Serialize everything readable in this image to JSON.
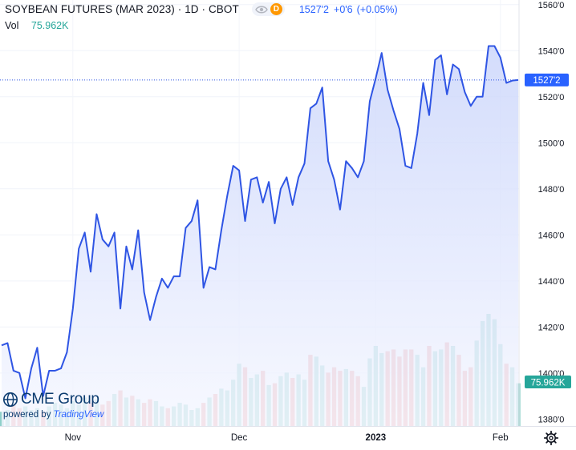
{
  "header": {
    "title": "SOYBEAN FUTURES (MAR 2023) · 1D · CBOT",
    "interval_badge": "D",
    "last_price": "1527'2",
    "change": "+0'6",
    "change_pct": "(+0.05%)",
    "vol_label": "Vol",
    "vol_value": "75.962K"
  },
  "price_tag": "1527'2",
  "volume_tag": "75.962K",
  "logo": {
    "name": "CME Group",
    "powered_label": "powered by",
    "powered_brand": "TradingView"
  },
  "icons": {
    "visibility": "eye-icon",
    "settings": "gear-icon"
  },
  "colors": {
    "line": "#2f55e4",
    "area_top": "#c9d4fb",
    "area_bottom": "#f5f7ff",
    "volume_up": "#8fd0c9",
    "volume_down": "#ef9a9a",
    "price_tag_bg": "#2962ff",
    "volume_tag_bg": "#26a69a",
    "interval_badge": "#ff9800"
  },
  "chart_data": {
    "type": "area",
    "x_ticks": [
      "Nov",
      "Dec",
      "2023",
      "Feb"
    ],
    "y_ticks": [
      "1380'0",
      "1400'0",
      "1420'0",
      "1440'0",
      "1460'0",
      "1480'0",
      "1500'0",
      "1520'0",
      "1540'0",
      "1560'0"
    ],
    "ylim": [
      1377,
      1562
    ],
    "grid": true,
    "last_price_value": 1527.25,
    "series": [
      {
        "values": [
          1412,
          1413,
          1401,
          1400,
          1389,
          1402,
          1411,
          1390,
          1401,
          1401,
          1402,
          1409,
          1428,
          1454,
          1461,
          1444,
          1469,
          1458,
          1455,
          1461,
          1428,
          1455,
          1445,
          1462,
          1435,
          1423,
          1433,
          1441,
          1437,
          1442,
          1442,
          1463,
          1466,
          1475,
          1437,
          1446,
          1445,
          1462,
          1477,
          1490,
          1488,
          1466,
          1484,
          1485,
          1474,
          1483,
          1465,
          1480,
          1485,
          1473,
          1485,
          1491,
          1515,
          1517,
          1524,
          1492,
          1484,
          1471,
          1492,
          1489,
          1485,
          1492,
          1518,
          1528,
          1539,
          1523,
          1514,
          1506,
          1490,
          1489,
          1504,
          1526,
          1512,
          1536,
          1538,
          1521,
          1534,
          1532,
          1522,
          1516,
          1520,
          1520,
          1542,
          1542,
          1537,
          1526,
          1527,
          1527.25
        ]
      }
    ],
    "volume": [
      {
        "values": [
          8,
          9,
          12,
          10,
          11,
          9,
          10,
          8,
          11,
          13,
          12,
          10,
          14,
          12,
          16,
          13,
          15,
          12,
          14,
          18,
          20,
          16,
          17,
          15,
          13,
          15,
          14,
          11,
          10,
          11,
          13,
          12,
          9,
          10,
          13,
          16,
          18,
          21,
          20,
          26,
          35,
          33,
          27,
          29,
          31,
          23,
          24,
          28,
          30,
          27,
          29,
          26,
          40,
          39,
          34,
          30,
          33,
          31,
          32,
          31,
          28,
          22,
          38,
          45,
          41,
          42,
          43,
          39,
          43,
          43,
          40,
          33,
          45,
          42,
          43,
          47,
          45,
          40,
          31,
          33,
          48,
          59,
          63,
          60,
          46,
          35,
          33,
          24
        ],
        "up_down": [
          "u",
          "u",
          "d",
          "d",
          "u",
          "u",
          "u",
          "d",
          "u",
          "u",
          "u",
          "u",
          "u",
          "u",
          "u",
          "d",
          "u",
          "d",
          "d",
          "u",
          "d",
          "u",
          "d",
          "u",
          "d",
          "d",
          "u",
          "u",
          "d",
          "u",
          "u",
          "u",
          "u",
          "u",
          "d",
          "u",
          "d",
          "u",
          "u",
          "u",
          "u",
          "d",
          "u",
          "u",
          "d",
          "u",
          "d",
          "u",
          "u",
          "d",
          "u",
          "u",
          "d",
          "u",
          "u",
          "d",
          "d",
          "d",
          "u",
          "d",
          "d",
          "u",
          "u",
          "u",
          "u",
          "d",
          "d",
          "d",
          "d",
          "d",
          "u",
          "u",
          "d",
          "u",
          "u",
          "d",
          "u",
          "d",
          "d",
          "d",
          "u",
          "u",
          "u",
          "u",
          "u",
          "d",
          "u",
          "u"
        ]
      }
    ]
  }
}
